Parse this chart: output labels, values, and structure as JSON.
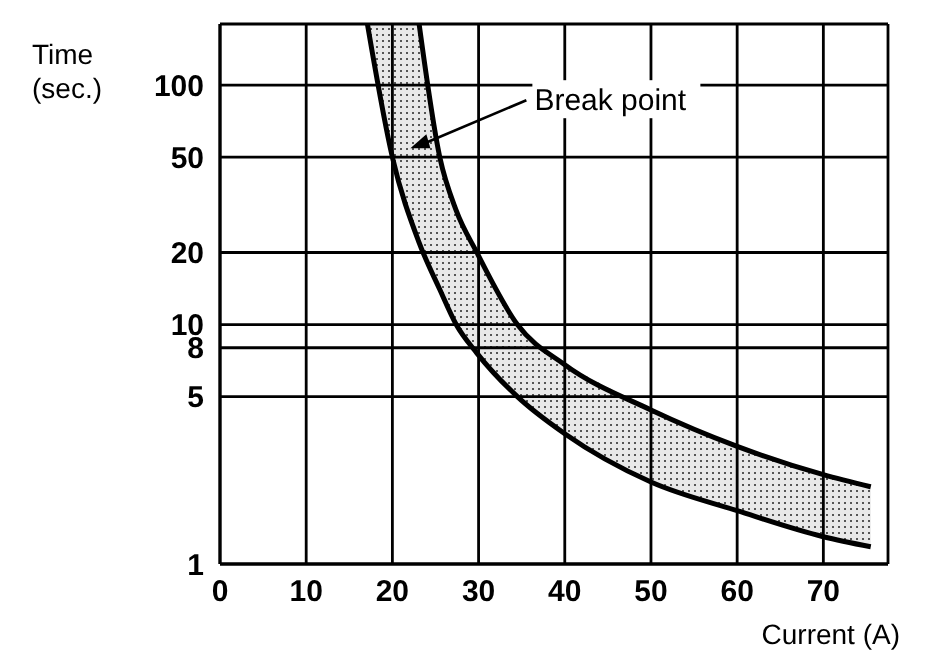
{
  "chart_data": {
    "type": "line",
    "ylabel": "Time (sec.)",
    "xlabel": "Current (A)",
    "log": "y",
    "xlim": [
      0,
      77.5
    ],
    "ylim": [
      1,
      180
    ],
    "xticks": [
      0,
      10,
      20,
      30,
      40,
      50,
      60,
      70
    ],
    "yticks": [
      1,
      5,
      8,
      10,
      20,
      50,
      100
    ],
    "grid": true,
    "legend": false,
    "marker": "none",
    "line_style": "solid",
    "x": [
      17.1,
      20,
      23.1,
      25.5,
      27.4,
      29.8,
      34.5,
      40,
      50,
      60,
      70,
      75.5
    ],
    "series": [
      {
        "color": "#000000",
        "values": [
          180,
          50,
          22,
          14,
          10,
          7.6,
          5,
          3.5,
          2.2,
          1.67,
          1.3,
          1.18
        ]
      },
      {
        "color": "#000000",
        "values": [
          null,
          null,
          180,
          50,
          30,
          20,
          10,
          6.8,
          4.4,
          3.1,
          2.36,
          2.1
        ],
        "lower": [
          180,
          50,
          22,
          14,
          10,
          7.6,
          5,
          3.5,
          2.2,
          1.67,
          1.3,
          1.18
        ],
        "upper": [
          180,
          180,
          180,
          50,
          30,
          20,
          10,
          6.8,
          4.4,
          3.1,
          2.36,
          2.1
        ]
      }
    ],
    "annotations": [
      "Break point"
    ]
  }
}
